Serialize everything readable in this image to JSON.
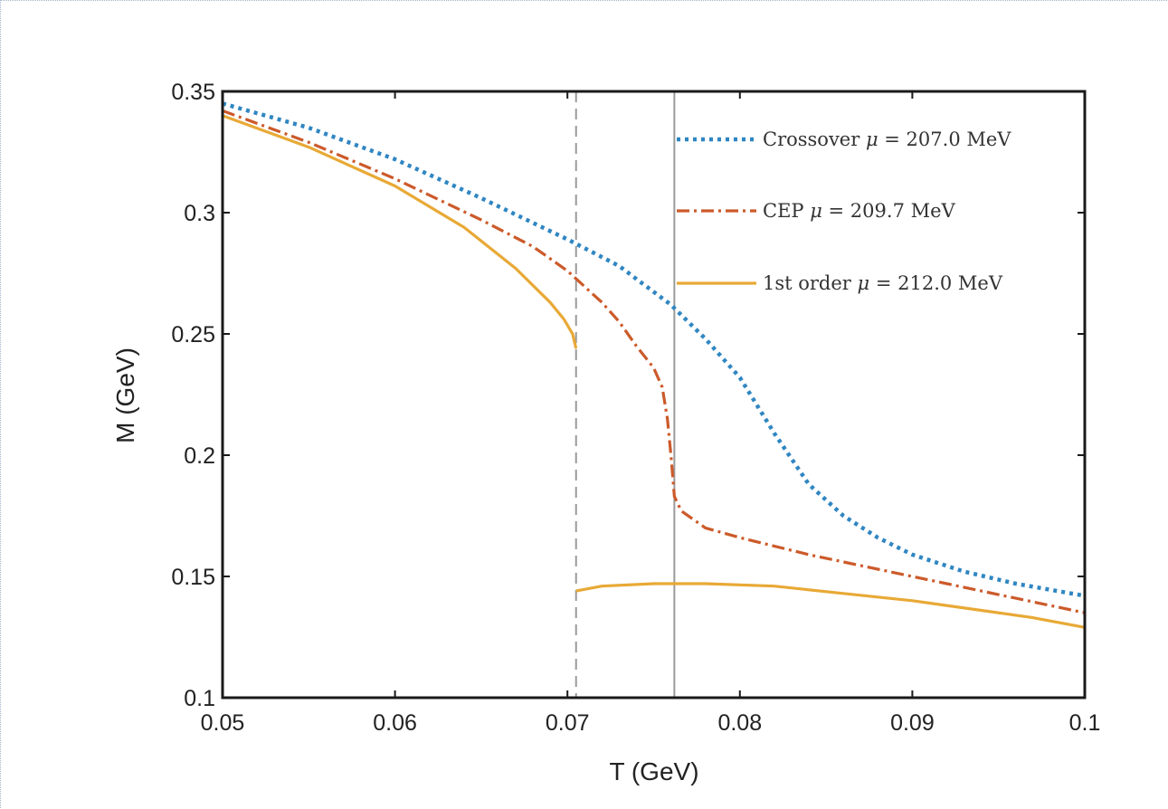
{
  "chart_data": {
    "type": "line",
    "xlabel": "T (GeV)",
    "ylabel": "M (GeV)",
    "xlim": [
      0.05,
      0.1
    ],
    "ylim": [
      0.1,
      0.35
    ],
    "xticks": [
      0.05,
      0.06,
      0.07,
      0.08,
      0.09,
      0.1
    ],
    "xtick_labels": [
      "0.05",
      "0.06",
      "0.07",
      "0.08",
      "0.09",
      "0.1"
    ],
    "yticks": [
      0.1,
      0.15,
      0.2,
      0.25,
      0.3,
      0.35
    ],
    "ytick_labels": [
      "0.1",
      "0.15",
      "0.2",
      "0.25",
      "0.3",
      "0.35"
    ],
    "grid": false,
    "legend_position": "top-right",
    "vertical_lines": [
      {
        "x": 0.0705,
        "style": "dashed",
        "color": "#9a9a9a"
      },
      {
        "x": 0.0762,
        "style": "solid",
        "color": "#9a9a9a"
      }
    ],
    "series": [
      {
        "name": "Crossover",
        "legend": {
          "label": "Crossover",
          "symbol": "μ",
          "value": "= 207.0",
          "unit": "MeV"
        },
        "color": "#2f86c2",
        "style": "dotted",
        "segments": [
          [
            [
              0.05,
              0.345
            ],
            [
              0.055,
              0.335
            ],
            [
              0.06,
              0.322
            ],
            [
              0.065,
              0.306
            ],
            [
              0.07,
              0.289
            ],
            [
              0.073,
              0.278
            ],
            [
              0.076,
              0.262
            ],
            [
              0.078,
              0.248
            ],
            [
              0.08,
              0.232
            ],
            [
              0.082,
              0.209
            ],
            [
              0.084,
              0.188
            ],
            [
              0.086,
              0.175
            ],
            [
              0.088,
              0.166
            ],
            [
              0.09,
              0.159
            ],
            [
              0.093,
              0.152
            ],
            [
              0.096,
              0.147
            ],
            [
              0.1,
              0.142
            ]
          ]
        ]
      },
      {
        "name": "CEP",
        "legend": {
          "label": "CEP",
          "symbol": "μ",
          "value": "= 209.7",
          "unit": "MeV"
        },
        "color": "#cc5a2a",
        "style": "dashdot",
        "segments": [
          [
            [
              0.05,
              0.342
            ],
            [
              0.055,
              0.329
            ],
            [
              0.06,
              0.314
            ],
            [
              0.065,
              0.297
            ],
            [
              0.068,
              0.286
            ],
            [
              0.07,
              0.276
            ],
            [
              0.072,
              0.263
            ],
            [
              0.073,
              0.255
            ],
            [
              0.074,
              0.245
            ],
            [
              0.075,
              0.236
            ],
            [
              0.0755,
              0.228
            ],
            [
              0.0758,
              0.215
            ],
            [
              0.076,
              0.2
            ],
            [
              0.0762,
              0.183
            ],
            [
              0.0766,
              0.177
            ],
            [
              0.078,
              0.17
            ],
            [
              0.08,
              0.166
            ],
            [
              0.084,
              0.159
            ],
            [
              0.088,
              0.153
            ],
            [
              0.092,
              0.147
            ],
            [
              0.096,
              0.141
            ],
            [
              0.1,
              0.135
            ]
          ]
        ]
      },
      {
        "name": "1st order",
        "legend": {
          "label": "1st order",
          "symbol": "μ",
          "value": "= 212.0",
          "unit": "MeV"
        },
        "color": "#e8a936",
        "style": "solid",
        "segments": [
          [
            [
              0.05,
              0.34
            ],
            [
              0.055,
              0.327
            ],
            [
              0.06,
              0.311
            ],
            [
              0.064,
              0.294
            ],
            [
              0.067,
              0.277
            ],
            [
              0.069,
              0.263
            ],
            [
              0.0698,
              0.256
            ],
            [
              0.0703,
              0.25
            ],
            [
              0.0705,
              0.244
            ]
          ],
          [
            [
              0.0705,
              0.144
            ],
            [
              0.072,
              0.146
            ],
            [
              0.075,
              0.147
            ],
            [
              0.078,
              0.147
            ],
            [
              0.082,
              0.146
            ],
            [
              0.086,
              0.143
            ],
            [
              0.09,
              0.14
            ],
            [
              0.094,
              0.136
            ],
            [
              0.097,
              0.133
            ],
            [
              0.1,
              0.129
            ]
          ]
        ]
      }
    ]
  }
}
